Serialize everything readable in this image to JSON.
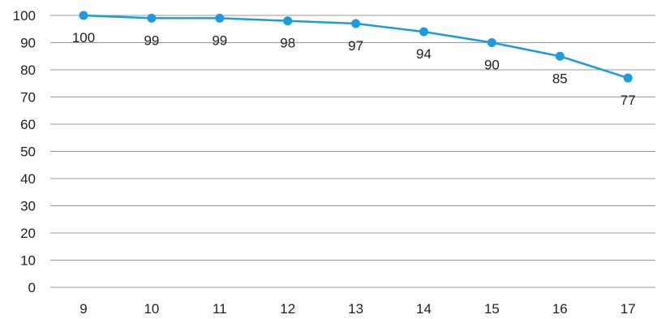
{
  "chart_data": {
    "type": "line",
    "title": "",
    "xlabel": "",
    "ylabel": "",
    "categories": [
      "9",
      "10",
      "11",
      "12",
      "13",
      "14",
      "15",
      "16",
      "17"
    ],
    "series": [
      {
        "values": [
          100,
          99,
          99,
          98,
          97,
          94,
          90,
          85,
          77
        ],
        "color": "#1b9ce0",
        "data_labels": [
          "100",
          "99",
          "99",
          "98",
          "97",
          "94",
          "90",
          "85",
          "77"
        ]
      }
    ],
    "ylim": [
      0,
      100
    ],
    "yticks": [
      "0",
      "10",
      "20",
      "30",
      "40",
      "50",
      "60",
      "70",
      "80",
      "90",
      "100"
    ],
    "grid": true,
    "legend": "none"
  }
}
